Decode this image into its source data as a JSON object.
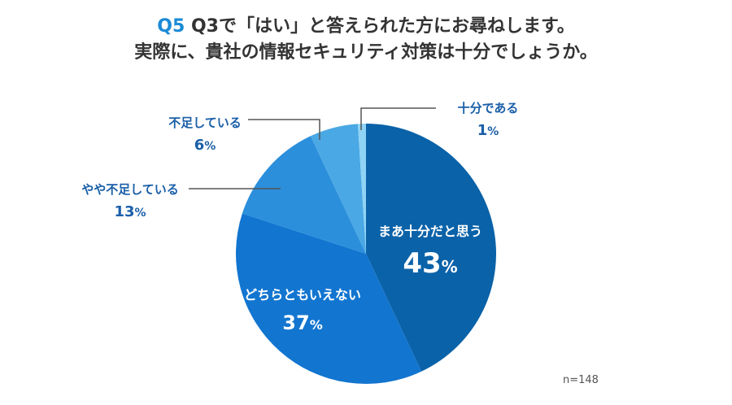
{
  "title": {
    "q_number": "Q5",
    "line1": "Q3で「はい」と答えられた方にお尋ねします。",
    "line2": "実際に、貴社の情報セキュリティ対策は十分でしょうか。"
  },
  "sample_size": "n=148",
  "chart_data": {
    "type": "pie",
    "title": "Q5 Q3で「はい」と答えられた方にお尋ねします。実際に、貴社の情報セキュリティ対策は十分でしょうか。",
    "start": "top",
    "direction": "clockwise",
    "slices": [
      {
        "label": "まあ十分だと思う",
        "value": 43,
        "value_label": "43%",
        "color": "#0a62a8",
        "label_pos": "inside"
      },
      {
        "label": "どちらともいえない",
        "value": 37,
        "value_label": "37%",
        "color": "#1275d0",
        "label_pos": "inside"
      },
      {
        "label": "やや不足している",
        "value": 13,
        "value_label": "13%",
        "color": "#2b8fdc",
        "label_pos": "outside"
      },
      {
        "label": "不足している",
        "value": 6,
        "value_label": "6%",
        "color": "#4aa8e4",
        "label_pos": "outside"
      },
      {
        "label": "十分である",
        "value": 1,
        "value_label": "1%",
        "color": "#8fd3f5",
        "label_pos": "outside"
      }
    ]
  }
}
